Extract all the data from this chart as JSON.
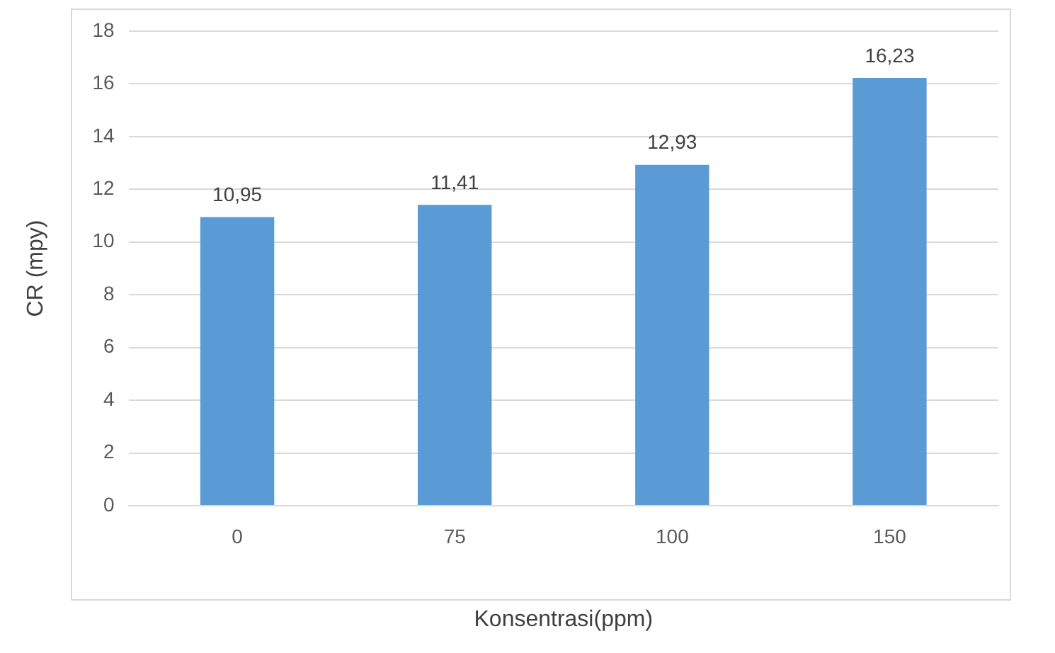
{
  "chart_data": {
    "type": "bar",
    "xlabel": "Konsentrasi(ppm)",
    "ylabel": "CR (mpy)",
    "categories": [
      "0",
      "75",
      "100",
      "150"
    ],
    "values": [
      10.95,
      11.41,
      12.93,
      16.23
    ],
    "value_labels": [
      "10,95",
      "11,41",
      "12,93",
      "16,23"
    ],
    "color": "#5b9bd5",
    "ylim": [
      0,
      18
    ],
    "yticks": [
      0,
      2,
      4,
      6,
      8,
      10,
      12,
      14,
      16,
      18
    ],
    "grid": "y",
    "legend": false
  }
}
